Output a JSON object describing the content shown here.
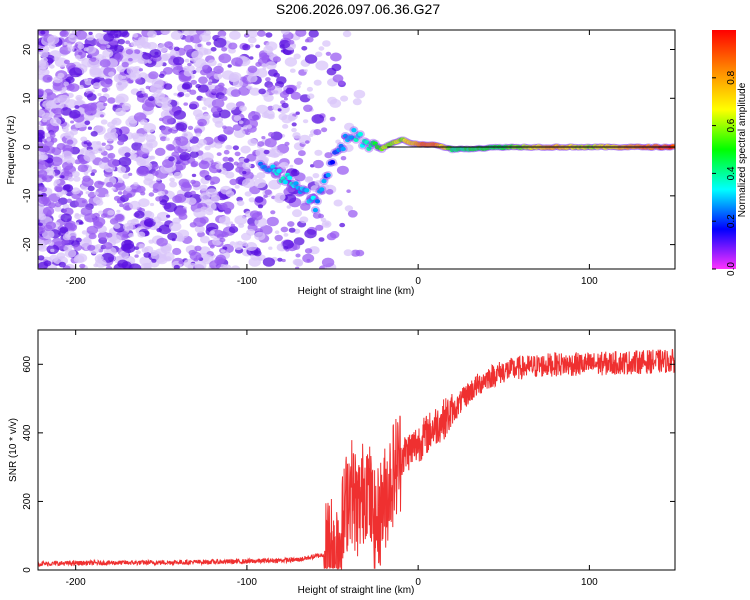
{
  "title": "S206.2026.097.06.36.G27",
  "colors": {
    "snr_line": "#ef3030",
    "frame": "#000000",
    "scatter": "#7a2cf0"
  },
  "chart_data": [
    {
      "type": "heatmap",
      "xlabel": "Height of straight line (km)",
      "ylabel": "Frequency (Hz)",
      "xlim": [
        -222,
        150
      ],
      "ylim": [
        -25,
        24
      ],
      "xticks": [
        -200,
        -100,
        0,
        100
      ],
      "yticks": [
        -20,
        -10,
        0,
        10,
        20
      ],
      "colorbar": {
        "label": "Normalized spectral amplitude",
        "range": [
          0.0,
          1.0
        ],
        "ticks": [
          0.0,
          0.2,
          0.4,
          0.6,
          0.8
        ],
        "colormap": [
          "#ff33ff",
          "#0000ff",
          "#00ffff",
          "#00ff00",
          "#ffff00",
          "#ff8800",
          "#ff0000"
        ]
      },
      "reference_line_hz": 0,
      "signal_track": [
        {
          "x": -92,
          "freq": -4,
          "amp": 0.25
        },
        {
          "x": -80,
          "freq": -6,
          "amp": 0.35
        },
        {
          "x": -70,
          "freq": -8,
          "amp": 0.3
        },
        {
          "x": -60,
          "freq": -12,
          "amp": 0.3
        },
        {
          "x": -50,
          "freq": -3,
          "amp": 0.2
        },
        {
          "x": -40,
          "freq": 3,
          "amp": 0.3
        },
        {
          "x": -30,
          "freq": 0.5,
          "amp": 0.4
        },
        {
          "x": -20,
          "freq": 0,
          "amp": 0.6
        },
        {
          "x": -10,
          "freq": 1.5,
          "amp": 0.6
        },
        {
          "x": 0,
          "freq": 0.5,
          "amp": 0.8
        },
        {
          "x": 10,
          "freq": 0.5,
          "amp": 0.9
        },
        {
          "x": 20,
          "freq": -0.5,
          "amp": 0.45
        },
        {
          "x": 50,
          "freq": 0,
          "amp": 0.5
        },
        {
          "x": 80,
          "freq": 0,
          "amp": 0.75
        },
        {
          "x": 100,
          "freq": 0,
          "amp": 0.6
        },
        {
          "x": 150,
          "freq": 0,
          "amp": 0.95
        }
      ]
    },
    {
      "type": "line",
      "xlabel": "Height of straight line (km)",
      "ylabel": "SNR (10 * v/v)",
      "xlim": [
        -222,
        150
      ],
      "ylim": [
        0,
        700
      ],
      "xticks": [
        -200,
        -100,
        0,
        100
      ],
      "yticks": [
        0,
        200,
        400,
        600
      ],
      "series": [
        {
          "name": "SNR",
          "x": [
            -222,
            -200,
            -150,
            -100,
            -70,
            -55,
            -45,
            -40,
            -35,
            -30,
            -25,
            -20,
            -15,
            -10,
            -5,
            0,
            10,
            20,
            30,
            40,
            50,
            60,
            80,
            100,
            120,
            150
          ],
          "y": [
            18,
            20,
            22,
            25,
            30,
            45,
            100,
            250,
            180,
            260,
            120,
            200,
            280,
            330,
            350,
            370,
            420,
            460,
            520,
            560,
            580,
            590,
            600,
            600,
            605,
            610
          ]
        }
      ]
    }
  ]
}
